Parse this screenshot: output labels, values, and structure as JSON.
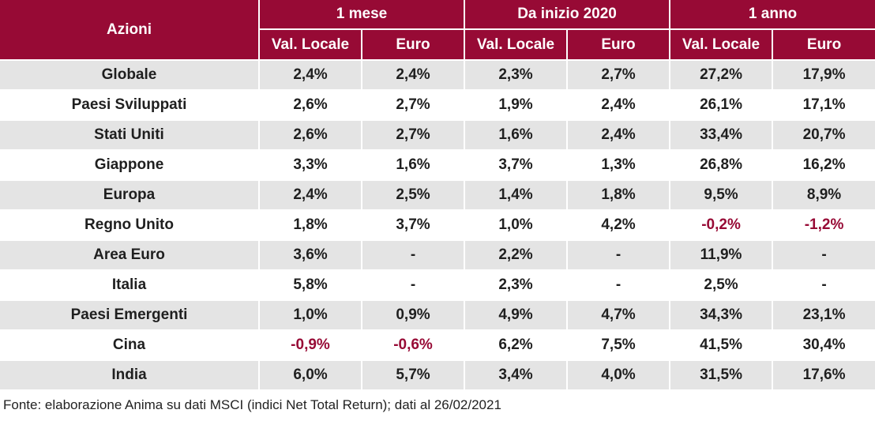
{
  "table": {
    "corner_label": "Azioni",
    "groups": [
      "1 mese",
      "Da inizio 2020",
      "1 anno"
    ],
    "subcolumns": [
      "Val. Locale",
      "Euro",
      "Val. Locale",
      "Euro",
      "Val. Locale",
      "Euro"
    ],
    "rows": [
      {
        "label": "Globale",
        "values": [
          "2,4%",
          "2,4%",
          "2,3%",
          "2,7%",
          "27,2%",
          "17,9%"
        ]
      },
      {
        "label": "Paesi Sviluppati",
        "values": [
          "2,6%",
          "2,7%",
          "1,9%",
          "2,4%",
          "26,1%",
          "17,1%"
        ]
      },
      {
        "label": "Stati Uniti",
        "values": [
          "2,6%",
          "2,7%",
          "1,6%",
          "2,4%",
          "33,4%",
          "20,7%"
        ]
      },
      {
        "label": "Giappone",
        "values": [
          "3,3%",
          "1,6%",
          "3,7%",
          "1,3%",
          "26,8%",
          "16,2%"
        ]
      },
      {
        "label": "Europa",
        "values": [
          "2,4%",
          "2,5%",
          "1,4%",
          "1,8%",
          "9,5%",
          "8,9%"
        ]
      },
      {
        "label": "Regno Unito",
        "values": [
          "1,8%",
          "3,7%",
          "1,0%",
          "4,2%",
          "-0,2%",
          "-1,2%"
        ]
      },
      {
        "label": "Area Euro",
        "values": [
          "3,6%",
          "-",
          "2,2%",
          "-",
          "11,9%",
          "-"
        ]
      },
      {
        "label": "Italia",
        "values": [
          "5,8%",
          "-",
          "2,3%",
          "-",
          "2,5%",
          "-"
        ]
      },
      {
        "label": "Paesi Emergenti",
        "values": [
          "1,0%",
          "0,9%",
          "4,9%",
          "4,7%",
          "34,3%",
          "23,1%"
        ]
      },
      {
        "label": "Cina",
        "values": [
          "-0,9%",
          "-0,6%",
          "6,2%",
          "7,5%",
          "41,5%",
          "30,4%"
        ]
      },
      {
        "label": "India",
        "values": [
          "6,0%",
          "5,7%",
          "3,4%",
          "4,0%",
          "31,5%",
          "17,6%"
        ]
      }
    ]
  },
  "source_note": "Fonte: elaborazione Anima su dati MSCI (indici Net Total Return); dati al 26/02/2021",
  "colors": {
    "header_background": "#970a35",
    "header_text": "#ffffff",
    "negative_value": "#970a35",
    "row_stripe": "#e4e4e4",
    "row_plain": "#ffffff"
  }
}
